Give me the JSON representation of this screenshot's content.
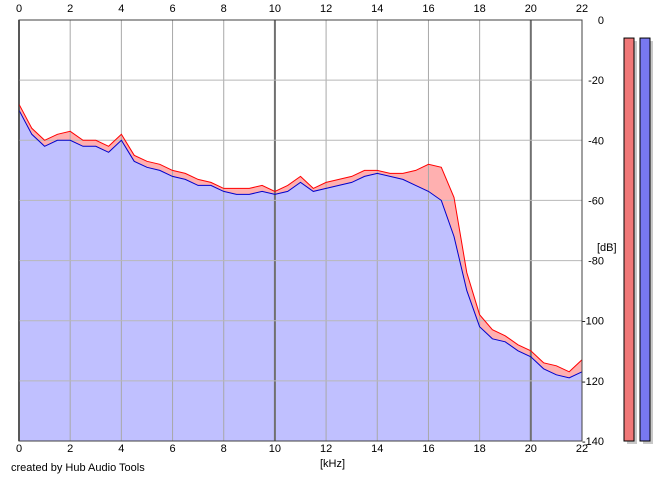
{
  "chart_data": {
    "type": "area",
    "xlabel": "[kHz]",
    "ylabel": "[dB]",
    "xlim": [
      0,
      22
    ],
    "ylim": [
      -140,
      0
    ],
    "x_ticks": [
      0,
      2,
      4,
      6,
      8,
      10,
      12,
      14,
      16,
      18,
      20,
      22
    ],
    "y_ticks": [
      0,
      -20,
      -40,
      -60,
      -80,
      -100,
      -120,
      -140
    ],
    "grid": true,
    "x_scale": "linear",
    "series": [
      {
        "color": "#ff0000",
        "fill": "#ffb0b0",
        "x": [
          0,
          0.5,
          1,
          1.5,
          2,
          2.5,
          3,
          3.5,
          4,
          4.5,
          5,
          5.5,
          6,
          6.5,
          7,
          7.5,
          8,
          8.5,
          9,
          9.5,
          10,
          10.5,
          11,
          11.5,
          12,
          12.5,
          13,
          13.5,
          14,
          14.5,
          15,
          15.5,
          16,
          16.5,
          17,
          17.5,
          18,
          18.5,
          19,
          19.5,
          20,
          20.5,
          21,
          21.5,
          22
        ],
        "values": [
          -28,
          -36,
          -40,
          -38,
          -37,
          -40,
          -40,
          -42,
          -38,
          -45,
          -47,
          -48,
          -50,
          -51,
          -53,
          -54,
          -56,
          -56,
          -56,
          -55,
          -57,
          -55,
          -52,
          -56,
          -54,
          -53,
          -52,
          -50,
          -50,
          -51,
          -51,
          -50,
          -48,
          -49,
          -59,
          -84,
          -98,
          -103,
          -105,
          -108,
          -110,
          -114,
          -115,
          -117,
          -113
        ]
      },
      {
        "color": "#0000cc",
        "fill": "#c0c0ff",
        "x": [
          0,
          0.5,
          1,
          1.5,
          2,
          2.5,
          3,
          3.5,
          4,
          4.5,
          5,
          5.5,
          6,
          6.5,
          7,
          7.5,
          8,
          8.5,
          9,
          9.5,
          10,
          10.5,
          11,
          11.5,
          12,
          12.5,
          13,
          13.5,
          14,
          14.5,
          15,
          15.5,
          16,
          16.5,
          17,
          17.5,
          18,
          18.5,
          19,
          19.5,
          20,
          20.5,
          21,
          21.5,
          22
        ],
        "values": [
          -30,
          -38,
          -42,
          -40,
          -40,
          -42,
          -42,
          -44,
          -40,
          -47,
          -49,
          -50,
          -52,
          -53,
          -55,
          -55,
          -57,
          -58,
          -58,
          -57,
          -58,
          -57,
          -54,
          -57,
          -56,
          -55,
          -54,
          -52,
          -51,
          -52,
          -53,
          -55,
          -57,
          -60,
          -72,
          -90,
          -102,
          -106,
          -107,
          -110,
          -112,
          -116,
          -118,
          -119,
          -117
        ]
      }
    ]
  },
  "level_meters": [
    {
      "color": "#f07878",
      "level_db": -6
    },
    {
      "color": "#7878f0",
      "level_db": -6
    }
  ],
  "credit": "created by Hub Audio Tools"
}
